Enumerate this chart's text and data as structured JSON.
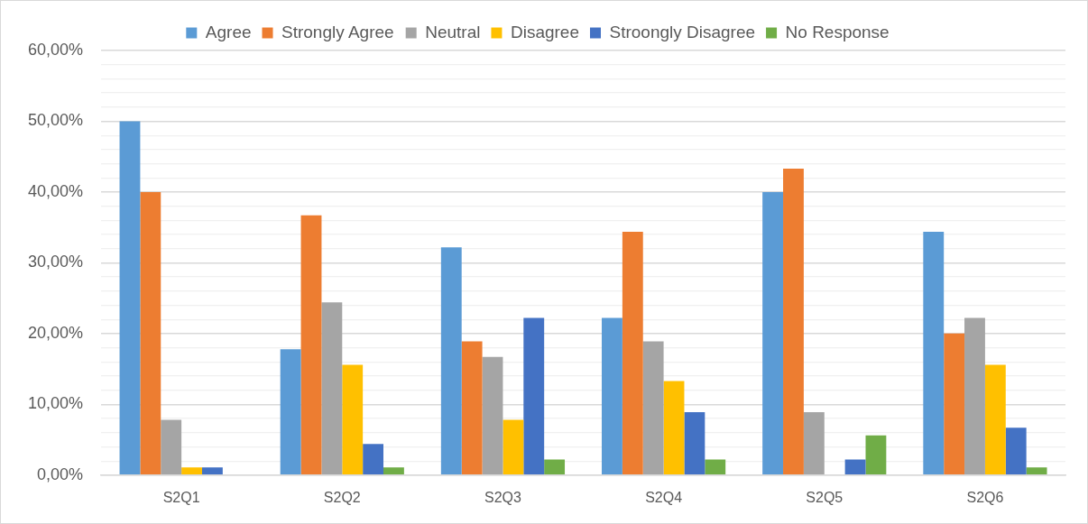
{
  "chart_data": {
    "type": "bar",
    "categories": [
      "S2Q1",
      "S2Q2",
      "S2Q3",
      "S2Q4",
      "S2Q5",
      "S2Q6"
    ],
    "series": [
      {
        "name": "Agree",
        "color": "#5b9bd5",
        "values": [
          50,
          17.8,
          32.2,
          22.2,
          40,
          34.4
        ]
      },
      {
        "name": "Strongly Agree",
        "color": "#ed7d31",
        "values": [
          40,
          36.7,
          18.9,
          34.4,
          43.3,
          20
        ]
      },
      {
        "name": "Neutral",
        "color": "#a5a5a5",
        "values": [
          7.8,
          24.4,
          16.7,
          18.9,
          8.9,
          22.2
        ]
      },
      {
        "name": "Disagree",
        "color": "#ffc000",
        "values": [
          1.1,
          15.6,
          7.8,
          13.3,
          0,
          15.6
        ]
      },
      {
        "name": "Stroongly Disagree",
        "color": "#4472c4",
        "values": [
          1.1,
          4.4,
          22.2,
          8.9,
          2.2,
          6.7
        ]
      },
      {
        "name": "No Response",
        "color": "#70ad47",
        "values": [
          0,
          1.1,
          2.2,
          2.2,
          5.6,
          1.1
        ]
      }
    ],
    "ylim": [
      0,
      60
    ],
    "yticks": [
      {
        "value": 0,
        "label": "0,00%"
      },
      {
        "value": 2,
        "label": null
      },
      {
        "value": 4,
        "label": null
      },
      {
        "value": 6,
        "label": null
      },
      {
        "value": 8,
        "label": null
      },
      {
        "value": 10,
        "label": "10,00%"
      },
      {
        "value": 12,
        "label": null
      },
      {
        "value": 14,
        "label": null
      },
      {
        "value": 16,
        "label": null
      },
      {
        "value": 18,
        "label": null
      },
      {
        "value": 20,
        "label": "20,00%"
      },
      {
        "value": 22,
        "label": null
      },
      {
        "value": 24,
        "label": null
      },
      {
        "value": 26,
        "label": null
      },
      {
        "value": 28,
        "label": null
      },
      {
        "value": 30,
        "label": "30,00%"
      },
      {
        "value": 32,
        "label": null
      },
      {
        "value": 34,
        "label": null
      },
      {
        "value": 36,
        "label": null
      },
      {
        "value": 38,
        "label": null
      },
      {
        "value": 40,
        "label": "40,00%"
      },
      {
        "value": 42,
        "label": null
      },
      {
        "value": 44,
        "label": null
      },
      {
        "value": 46,
        "label": null
      },
      {
        "value": 48,
        "label": null
      },
      {
        "value": 50,
        "label": "50,00%"
      },
      {
        "value": 52,
        "label": null
      },
      {
        "value": 54,
        "label": null
      },
      {
        "value": 56,
        "label": null
      },
      {
        "value": 58,
        "label": null
      },
      {
        "value": 60,
        "label": "60,00%"
      }
    ],
    "grid": "y",
    "legend": "top"
  }
}
